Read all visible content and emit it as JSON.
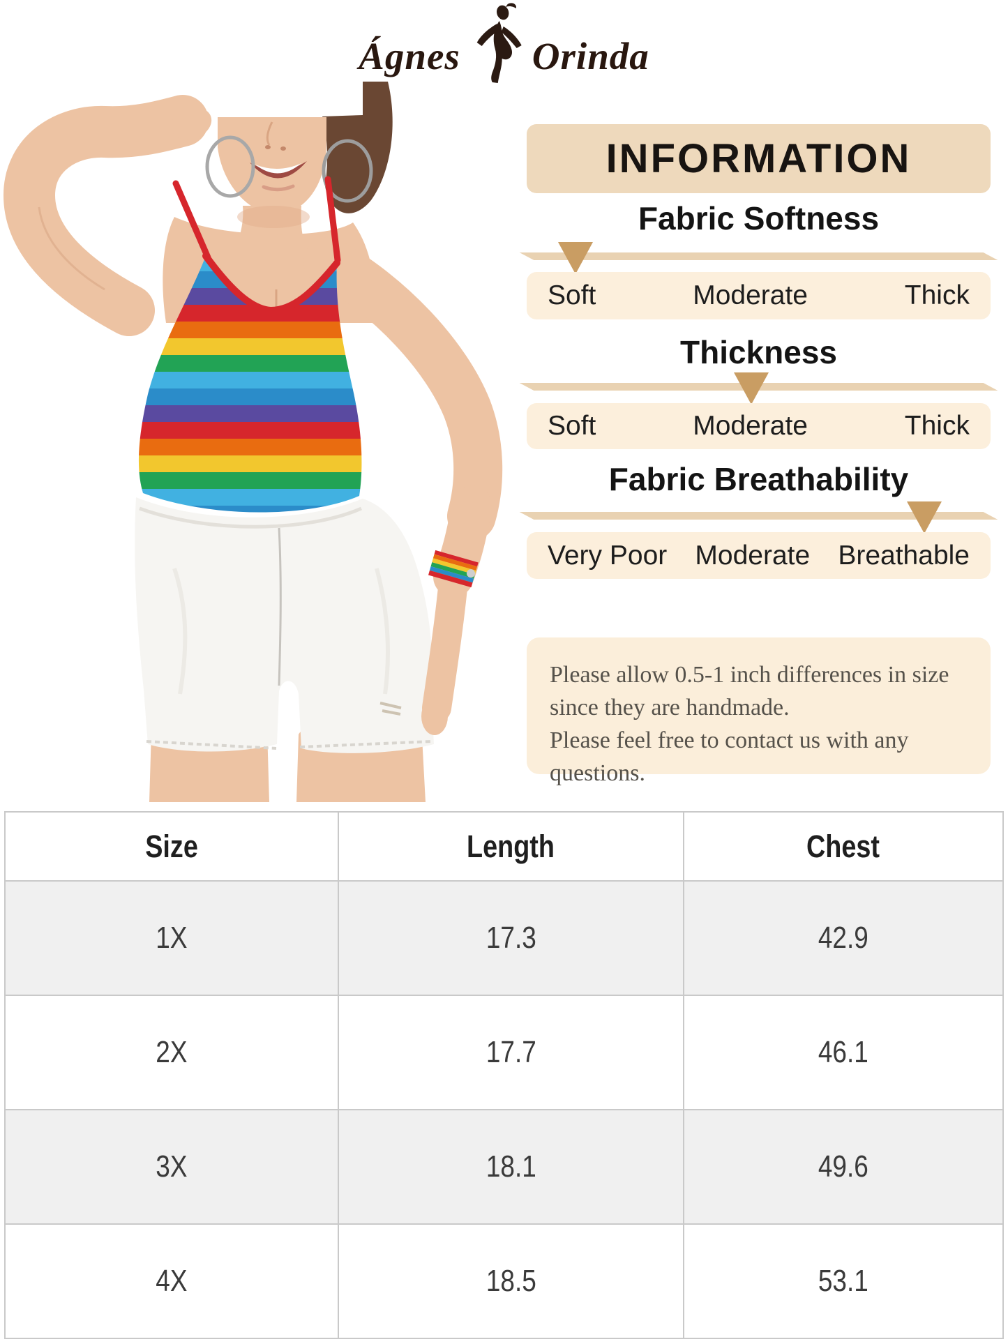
{
  "brand": {
    "name_left": "Ágnes",
    "name_right": "Orinda"
  },
  "info": {
    "title": "INFORMATION",
    "scales": [
      {
        "heading": "Fabric Softness",
        "labels": [
          "Soft",
          "Moderate",
          "Thick"
        ],
        "marker_percent": 10.5,
        "marker_value": "Soft"
      },
      {
        "heading": "Thickness",
        "labels": [
          "Soft",
          "Moderate",
          "Thick"
        ],
        "marker_percent": 48.4,
        "marker_value": "Moderate"
      },
      {
        "heading": "Fabric Breathability",
        "labels": [
          "Very Poor",
          "Moderate",
          "Breathable"
        ],
        "marker_percent": 85.7,
        "marker_value": "Breathable"
      }
    ],
    "note_lines": [
      "Please allow 0.5-1 inch differences in size",
      "since they are handmade.",
      "Please feel free to contact us with any questions."
    ]
  },
  "size_table": {
    "columns": [
      "Size",
      "Length",
      "Chest"
    ],
    "rows": [
      {
        "size": "1X",
        "length": "17.3",
        "chest": "42.9"
      },
      {
        "size": "2X",
        "length": "17.7",
        "chest": "46.1"
      },
      {
        "size": "3X",
        "length": "18.1",
        "chest": "49.6"
      },
      {
        "size": "4X",
        "length": "18.5",
        "chest": "53.1"
      }
    ]
  },
  "colors": {
    "accent_red": "#d6262c",
    "panel_tan": "#eed9bc",
    "ribbon_tan": "#e9d2b2",
    "marker_tan": "#c99d63",
    "row_cream": "#fcefdc",
    "note_cream": "#fbeeda",
    "table_gray": "#f0f0f0",
    "table_border": "#c9c9c9"
  }
}
